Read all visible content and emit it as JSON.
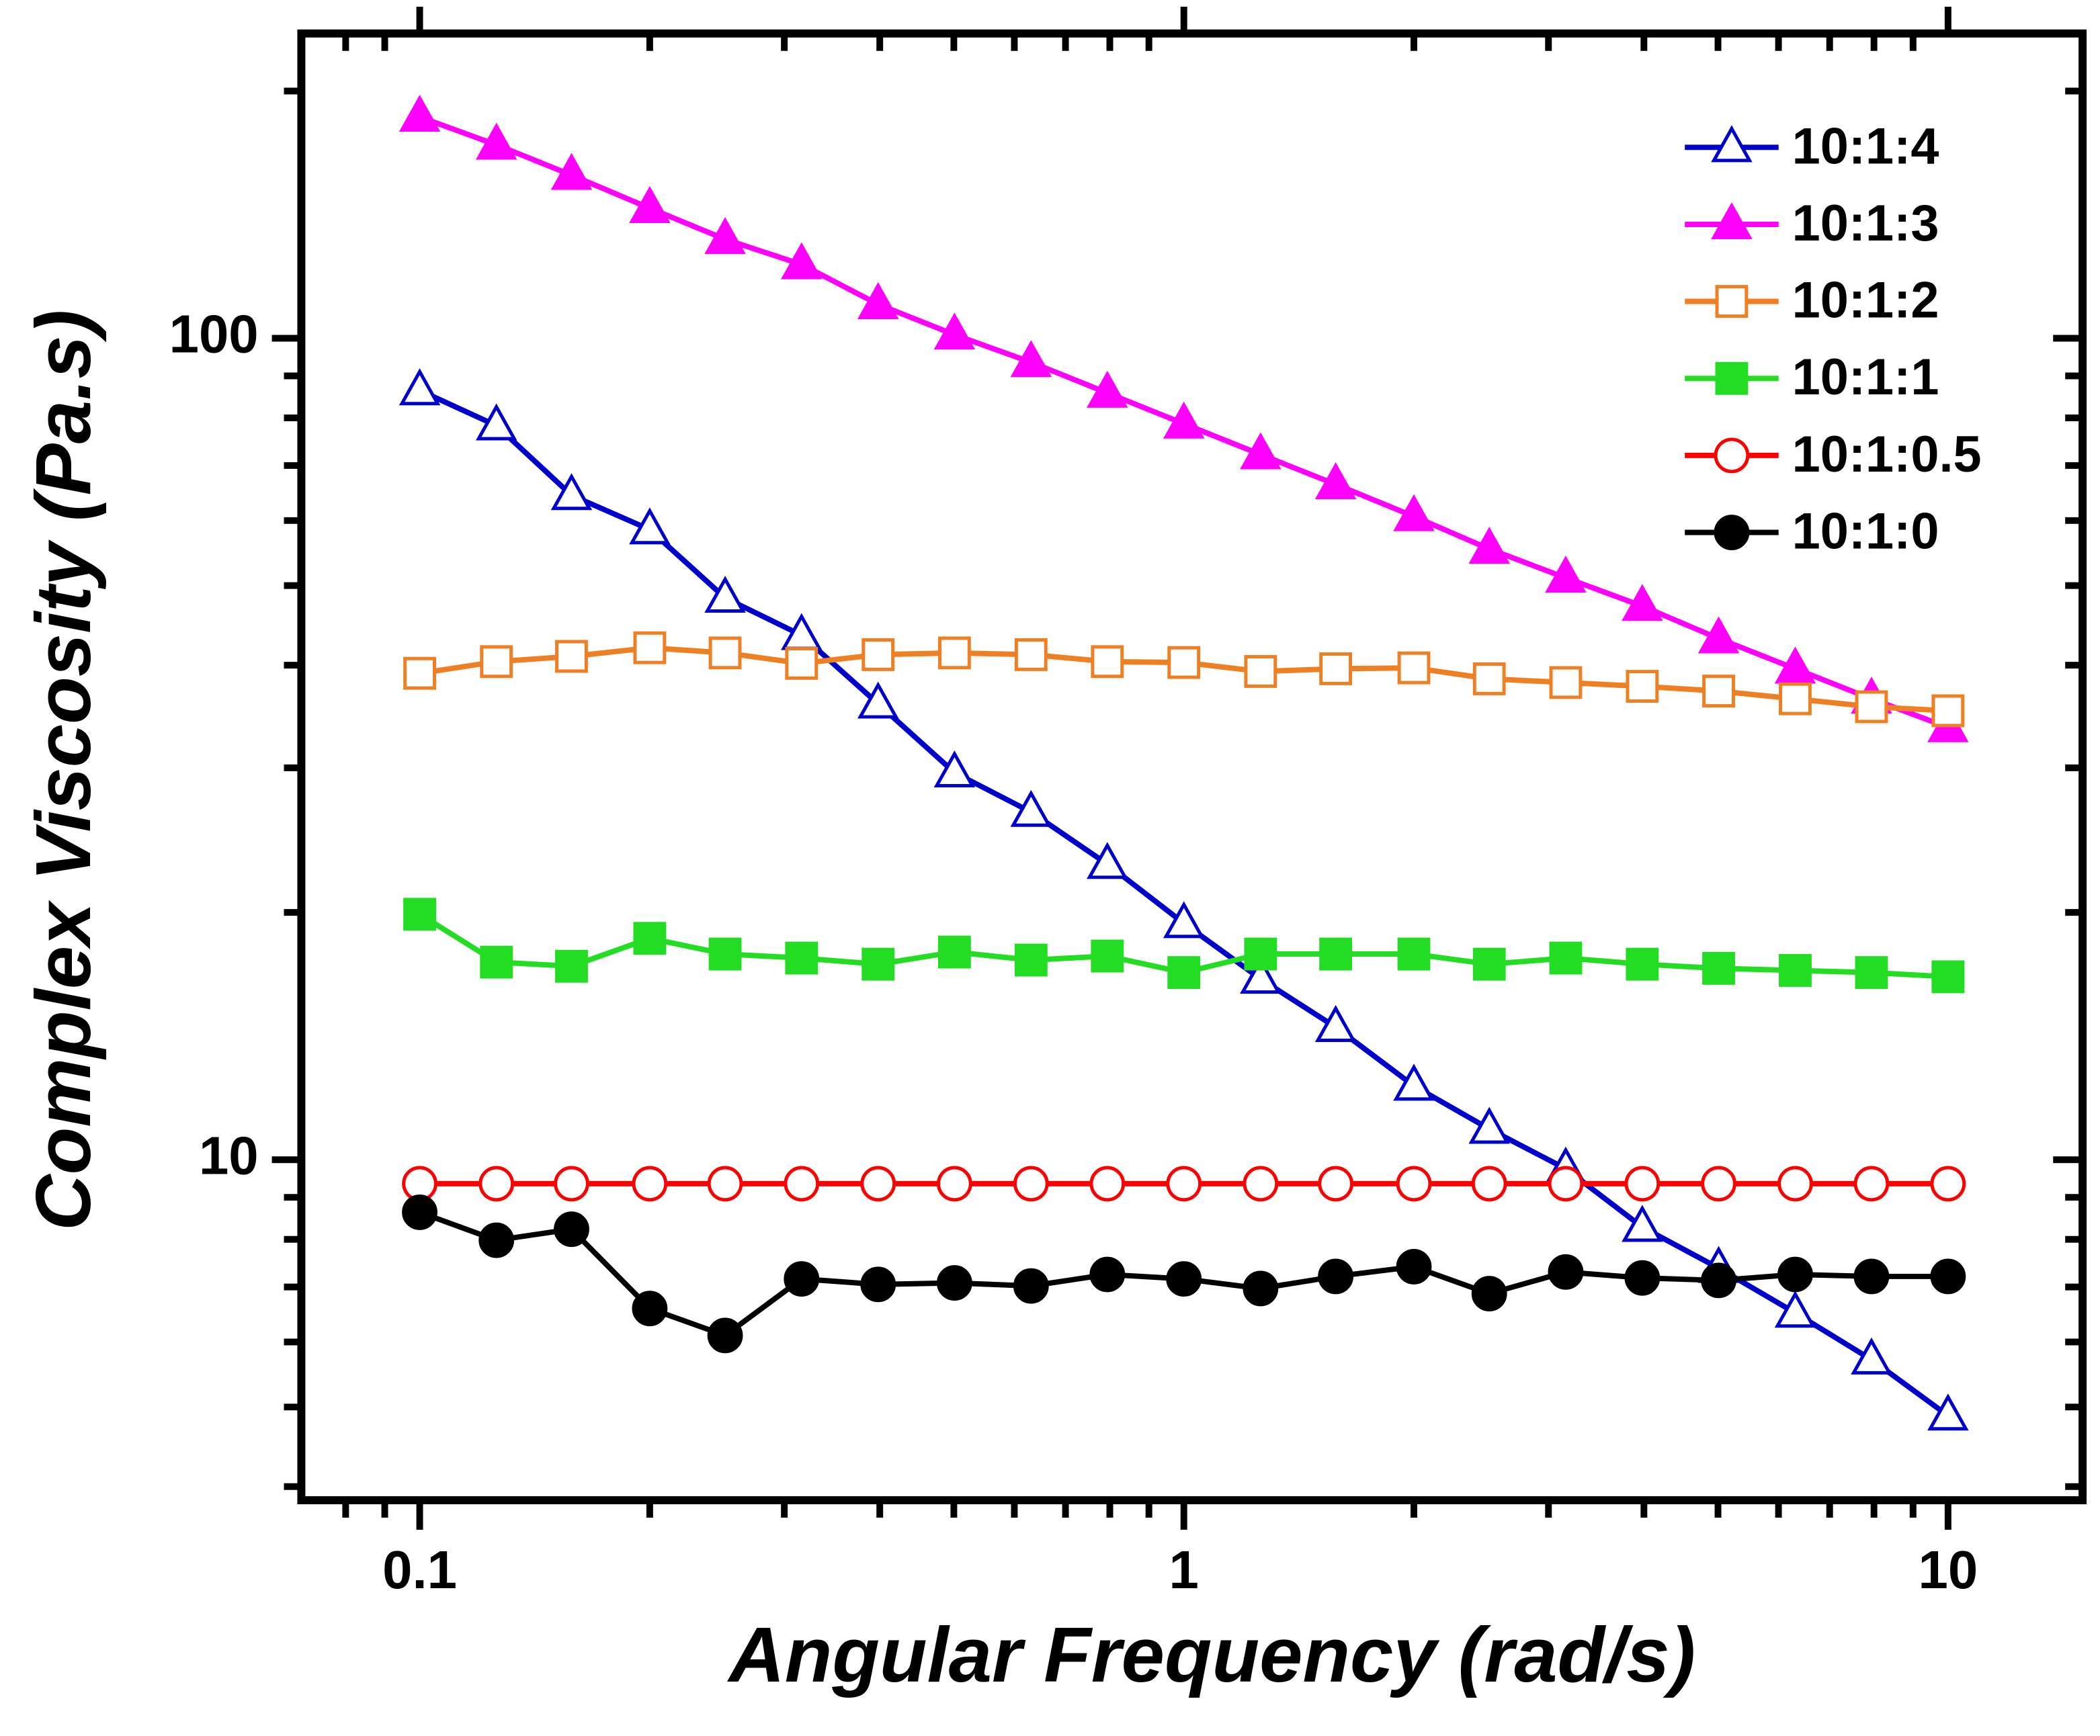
{
  "chart_data": {
    "type": "line",
    "xlabel": "Angular Frequency (rad/s)",
    "ylabel": "Complex Viscosity (Pa.s)",
    "xscale": "log",
    "yscale": "log",
    "xlim": [
      0.07,
      15
    ],
    "ylim": [
      3.85,
      235
    ],
    "xticks": [
      0.1,
      1,
      10
    ],
    "yticks": [
      10,
      100
    ],
    "xminor_ticks": [
      0.08,
      0.09,
      0.2,
      0.3,
      0.4,
      0.5,
      0.6,
      0.7,
      0.8,
      0.9,
      2,
      3,
      4,
      5,
      6,
      7,
      8,
      9
    ],
    "yminor_ticks": [
      4,
      5,
      6,
      7,
      8,
      9,
      20,
      30,
      40,
      50,
      60,
      70,
      80,
      90,
      200
    ],
    "legend": "upper right",
    "x": [
      0.1,
      0.126,
      0.158,
      0.2,
      0.251,
      0.316,
      0.398,
      0.501,
      0.631,
      0.794,
      1,
      1.26,
      1.58,
      2,
      2.51,
      3.16,
      3.98,
      5.01,
      6.31,
      7.94,
      10
    ],
    "series": [
      {
        "name": "10:1:4",
        "color": "#0000cc",
        "marker": "triangle",
        "filled": false,
        "values": [
          86.4,
          78.3,
          64.4,
          58.5,
          48.3,
          43.5,
          35.9,
          29.6,
          26.5,
          22.9,
          19.4,
          16.6,
          14.5,
          12.3,
          10.9,
          9.75,
          8.28,
          7.38,
          6.51,
          5.71,
          4.88
        ]
      },
      {
        "name": "10:1:3",
        "color": "#ff00ff",
        "marker": "triangle",
        "filled": true,
        "values": [
          186,
          172,
          158,
          144,
          132,
          123,
          110,
          101,
          93.5,
          85.8,
          78.7,
          72.2,
          66.4,
          60.7,
          55.4,
          51.1,
          47.2,
          43.1,
          39.6,
          36.4,
          33.6
        ]
      },
      {
        "name": "10:1:2",
        "color": "#ee7f22",
        "marker": "square",
        "filled": false,
        "values": [
          39.1,
          40.4,
          41.0,
          42.0,
          41.4,
          40.2,
          41.2,
          41.4,
          41.2,
          40.4,
          40.3,
          39.3,
          39.6,
          39.7,
          38.5,
          38.1,
          37.7,
          37.2,
          36.4,
          35.6,
          35.2
        ]
      },
      {
        "name": "10:1:1",
        "color": "#22dd22",
        "marker": "square",
        "filled": true,
        "values": [
          19.9,
          17.4,
          17.2,
          18.6,
          17.8,
          17.6,
          17.3,
          17.9,
          17.5,
          17.7,
          16.9,
          17.8,
          17.8,
          17.8,
          17.3,
          17.6,
          17.3,
          17.1,
          17.0,
          16.9,
          16.7
        ]
      },
      {
        "name": "10:1:0.5",
        "color": "#ff0000",
        "marker": "circle",
        "filled": false,
        "values": [
          9.35,
          9.35,
          9.35,
          9.35,
          9.35,
          9.35,
          9.35,
          9.35,
          9.35,
          9.35,
          9.35,
          9.35,
          9.35,
          9.35,
          9.35,
          9.35,
          9.35,
          9.35,
          9.35,
          9.35,
          9.35
        ]
      },
      {
        "name": "10:1:0",
        "color": "#000000",
        "marker": "circle",
        "filled": true,
        "values": [
          8.63,
          7.98,
          8.23,
          6.59,
          6.11,
          7.16,
          7.05,
          7.08,
          7.02,
          7.25,
          7.16,
          6.97,
          7.21,
          7.41,
          6.87,
          7.3,
          7.18,
          7.13,
          7.25,
          7.21,
          7.21
        ]
      }
    ]
  }
}
